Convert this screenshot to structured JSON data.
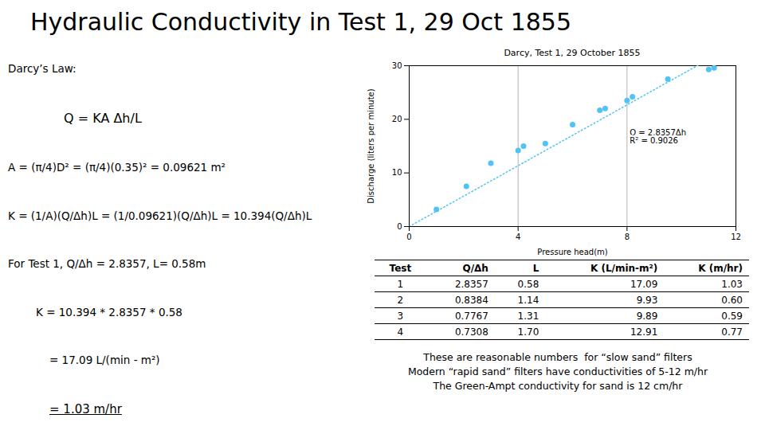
{
  "title": "Hydraulic Conductivity in Test 1, 29 Oct 1855",
  "formulas": [
    "Darcy’s Law:",
    "Q = KA Δh/L",
    "A = (π/4)D² = (π/4)(0.35)² = 0.09621 m²",
    "K = (1/A)(Q/Δh)L = (1/0.09621)(Q/Δh)L = 10.394(Q/Δh)L",
    "For Test 1, Q/Δh = 2.8357, L= 0.58m",
    "K = 10.394 * 2.8357 * 0.58",
    "= 17.09 L/(min - m²)",
    "= 1.03 m/hr"
  ],
  "chart_data": {
    "type": "scatter",
    "title": "Darcy, Test 1, 29 October 1855",
    "xlabel": "Pressure head(m)",
    "ylabel": "Discharge (liters per minute)",
    "x": [
      1.0,
      2.1,
      3.0,
      4.0,
      4.2,
      5.0,
      6.0,
      7.0,
      7.2,
      8.0,
      8.2,
      9.5,
      11.0,
      11.2
    ],
    "values": [
      3.2,
      7.5,
      11.8,
      14.2,
      15.0,
      15.5,
      19.0,
      21.7,
      22.0,
      23.5,
      24.2,
      27.5,
      29.3,
      29.6
    ],
    "color": "#4fc3f7",
    "marker": "circle",
    "trendline": {
      "slope": 2.8357,
      "color": "#4fc3f7",
      "line_style": "dotted"
    },
    "xlim": [
      0,
      12
    ],
    "ylim": [
      0,
      30
    ],
    "xticks": [
      0,
      4,
      8,
      12
    ],
    "yticks": [
      0,
      10,
      20,
      30
    ],
    "grid": "x",
    "annotations": [
      {
        "text": "Q = 2.8357Δh\nR² = 0.9026",
        "x": 8.1,
        "y": 15.5
      }
    ]
  },
  "table": {
    "columns": [
      "Test",
      "Q/Δh",
      "L",
      "K (L/min-m²)",
      "K (m/hr)"
    ],
    "rows": [
      [
        "1",
        "2.8357",
        "0.58",
        "17.09",
        "1.03"
      ],
      [
        "2",
        "0.8384",
        "1.14",
        "9.93",
        "0.60"
      ],
      [
        "3",
        "0.7767",
        "1.31",
        "9.89",
        "0.59"
      ],
      [
        "4",
        "0.7308",
        "1.70",
        "12.91",
        "0.77"
      ]
    ]
  },
  "notes": [
    "These are reasonable numbers  for “slow sand” filters",
    "Modern “rapid sand” filters have conductivities of 5-12 m/hr",
    "The Green-Ampt conductivity for sand is 12 cm/hr"
  ]
}
